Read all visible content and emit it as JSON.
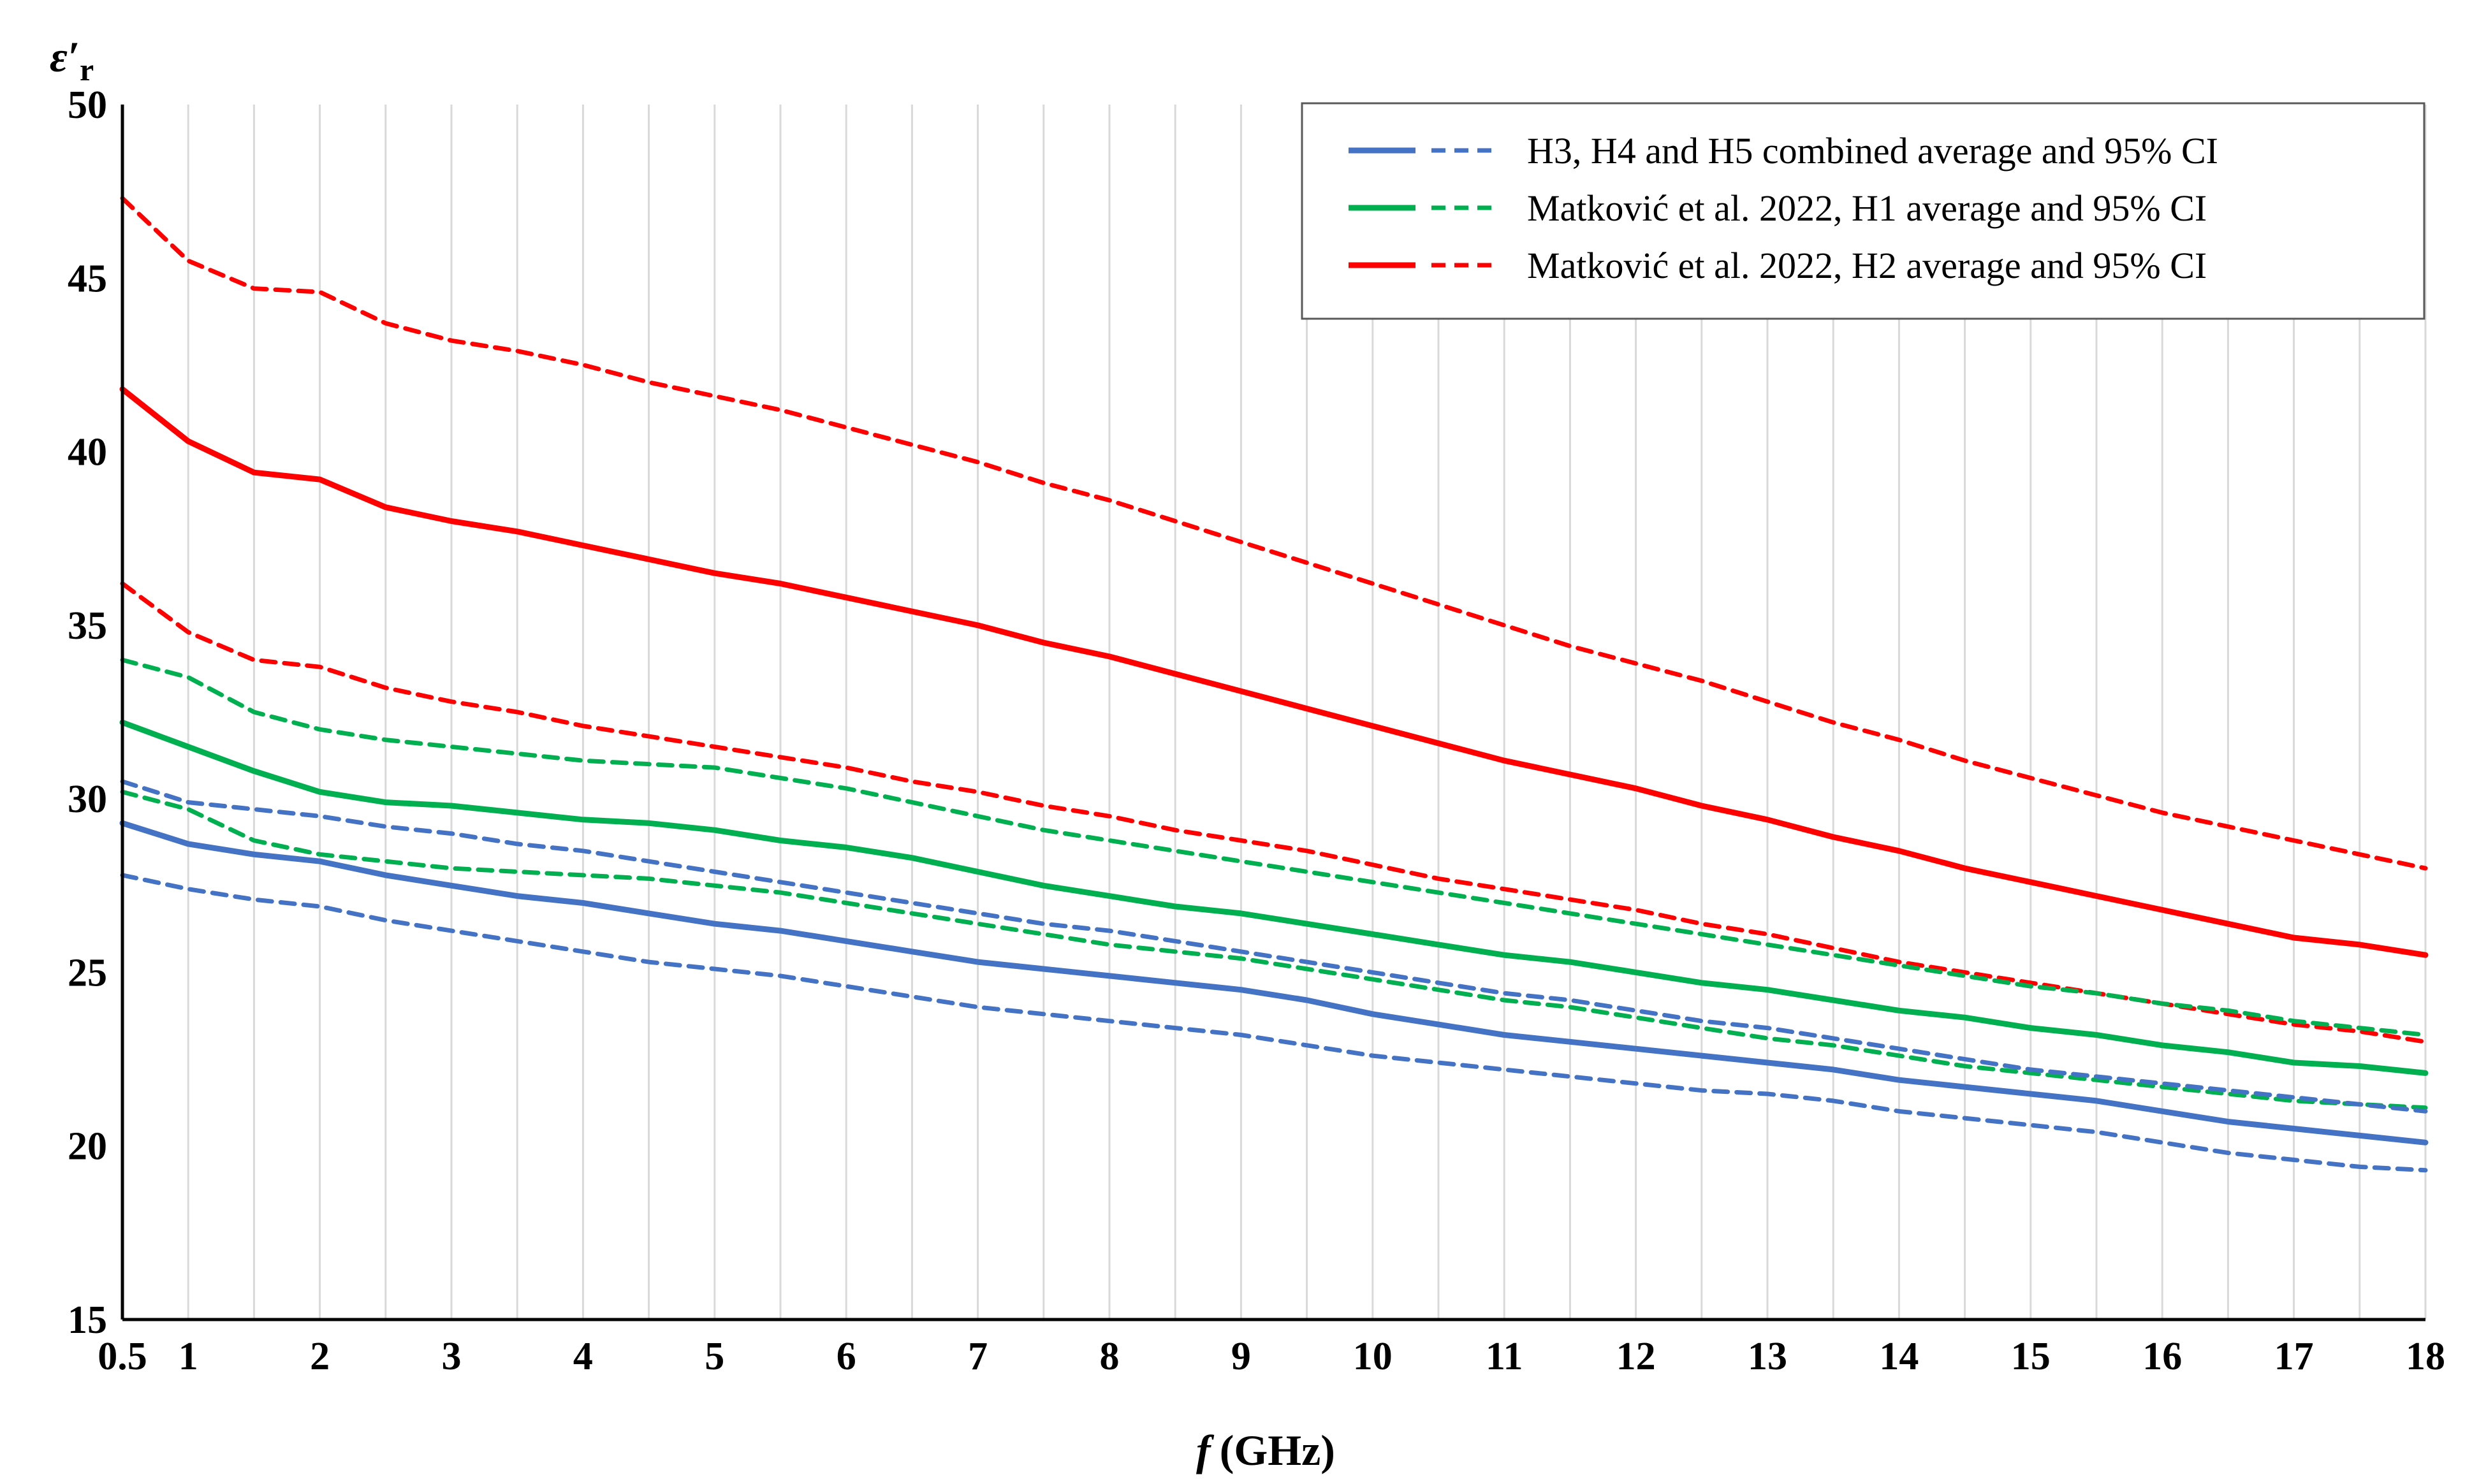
{
  "chart_data": {
    "type": "line",
    "title": "",
    "ylabel": "ε′",
    "ylabel_sub": "r",
    "xlabel_var": "f",
    "xlabel_unit": "(GHz)",
    "xlim": [
      0.5,
      18
    ],
    "ylim": [
      15,
      50
    ],
    "x_ticks": [
      0.5,
      1,
      2,
      3,
      4,
      5,
      6,
      7,
      8,
      9,
      10,
      11,
      12,
      13,
      14,
      15,
      16,
      17,
      18
    ],
    "x_tick_labels": [
      "0.5",
      "1",
      "2",
      "3",
      "4",
      "5",
      "6",
      "7",
      "8",
      "9",
      "10",
      "11",
      "12",
      "13",
      "14",
      "15",
      "16",
      "17",
      "18"
    ],
    "y_ticks": [
      15,
      20,
      25,
      30,
      35,
      40,
      45,
      50
    ],
    "y_tick_labels": [
      "15",
      "20",
      "25",
      "30",
      "35",
      "40",
      "45",
      "50"
    ],
    "grid": "vertical",
    "legend_position": "top-right",
    "legend": [
      {
        "label": "H3, H4 and H5 combined average and 95% CI",
        "color": "#4472c4"
      },
      {
        "label": "Matković et al. 2022, H1 average and 95% CI",
        "color": "#00b050"
      },
      {
        "label": "Matković et al. 2022, H2 average and 95% CI",
        "color": "#ff0000"
      }
    ],
    "x": [
      0.5,
      1,
      1.5,
      2,
      2.5,
      3,
      3.5,
      4,
      4.5,
      5,
      5.5,
      6,
      6.5,
      7,
      7.5,
      8,
      8.5,
      9,
      9.5,
      10,
      10.5,
      11,
      11.5,
      12,
      12.5,
      13,
      13.5,
      14,
      14.5,
      15,
      15.5,
      16,
      16.5,
      17,
      17.5,
      18
    ],
    "series": [
      {
        "name": "H2 upper 95% CI",
        "color": "#ff0000",
        "style": "dashed",
        "values": [
          47.3,
          45.5,
          44.7,
          44.6,
          43.7,
          43.2,
          42.9,
          42.5,
          42.0,
          41.6,
          41.2,
          40.7,
          40.2,
          39.7,
          39.1,
          38.6,
          38.0,
          37.4,
          36.8,
          36.2,
          35.6,
          35.0,
          34.4,
          33.9,
          33.4,
          32.8,
          32.2,
          31.7,
          31.1,
          30.6,
          30.1,
          29.6,
          29.2,
          28.8,
          28.4,
          28.0
        ]
      },
      {
        "name": "H2 average",
        "color": "#ff0000",
        "style": "solid",
        "values": [
          41.8,
          40.3,
          39.4,
          39.2,
          38.4,
          38.0,
          37.7,
          37.3,
          36.9,
          36.5,
          36.2,
          35.8,
          35.4,
          35.0,
          34.5,
          34.1,
          33.6,
          33.1,
          32.6,
          32.1,
          31.6,
          31.1,
          30.7,
          30.3,
          29.8,
          29.4,
          28.9,
          28.5,
          28.0,
          27.6,
          27.2,
          26.8,
          26.4,
          26.0,
          25.8,
          25.5
        ]
      },
      {
        "name": "H2 lower 95% CI",
        "color": "#ff0000",
        "style": "dashed",
        "values": [
          36.2,
          34.8,
          34.0,
          33.8,
          33.2,
          32.8,
          32.5,
          32.1,
          31.8,
          31.5,
          31.2,
          30.9,
          30.5,
          30.2,
          29.8,
          29.5,
          29.1,
          28.8,
          28.5,
          28.1,
          27.7,
          27.4,
          27.1,
          26.8,
          26.4,
          26.1,
          25.7,
          25.3,
          25.0,
          24.7,
          24.4,
          24.1,
          23.8,
          23.5,
          23.3,
          23.0
        ]
      },
      {
        "name": "H1 upper 95% CI",
        "color": "#00b050",
        "style": "dashed",
        "values": [
          34.0,
          33.5,
          32.5,
          32.0,
          31.7,
          31.5,
          31.3,
          31.1,
          31.0,
          30.9,
          30.6,
          30.3,
          29.9,
          29.5,
          29.1,
          28.8,
          28.5,
          28.2,
          27.9,
          27.6,
          27.3,
          27.0,
          26.7,
          26.4,
          26.1,
          25.8,
          25.5,
          25.2,
          24.9,
          24.6,
          24.4,
          24.1,
          23.9,
          23.6,
          23.4,
          23.2
        ]
      },
      {
        "name": "H1 average",
        "color": "#00b050",
        "style": "solid",
        "values": [
          32.2,
          31.5,
          30.8,
          30.2,
          29.9,
          29.8,
          29.6,
          29.4,
          29.3,
          29.1,
          28.8,
          28.6,
          28.3,
          27.9,
          27.5,
          27.2,
          26.9,
          26.7,
          26.4,
          26.1,
          25.8,
          25.5,
          25.3,
          25.0,
          24.7,
          24.5,
          24.2,
          23.9,
          23.7,
          23.4,
          23.2,
          22.9,
          22.7,
          22.4,
          22.3,
          22.1
        ]
      },
      {
        "name": "H1 lower 95% CI",
        "color": "#00b050",
        "style": "dashed",
        "values": [
          30.2,
          29.7,
          28.8,
          28.4,
          28.2,
          28.0,
          27.9,
          27.8,
          27.7,
          27.5,
          27.3,
          27.0,
          26.7,
          26.4,
          26.1,
          25.8,
          25.6,
          25.4,
          25.1,
          24.8,
          24.5,
          24.2,
          24.0,
          23.7,
          23.4,
          23.1,
          22.9,
          22.6,
          22.3,
          22.1,
          21.9,
          21.7,
          21.5,
          21.3,
          21.2,
          21.1
        ]
      },
      {
        "name": "H3-H5 upper 95% CI",
        "color": "#4472c4",
        "style": "dashed",
        "values": [
          30.5,
          29.9,
          29.7,
          29.5,
          29.2,
          29.0,
          28.7,
          28.5,
          28.2,
          27.9,
          27.6,
          27.3,
          27.0,
          26.7,
          26.4,
          26.2,
          25.9,
          25.6,
          25.3,
          25.0,
          24.7,
          24.4,
          24.2,
          23.9,
          23.6,
          23.4,
          23.1,
          22.8,
          22.5,
          22.2,
          22.0,
          21.8,
          21.6,
          21.4,
          21.2,
          21.0
        ]
      },
      {
        "name": "H3-H5 average",
        "color": "#4472c4",
        "style": "solid",
        "values": [
          29.3,
          28.7,
          28.4,
          28.2,
          27.8,
          27.5,
          27.2,
          27.0,
          26.7,
          26.4,
          26.2,
          25.9,
          25.6,
          25.3,
          25.1,
          24.9,
          24.7,
          24.5,
          24.2,
          23.8,
          23.5,
          23.2,
          23.0,
          22.8,
          22.6,
          22.4,
          22.2,
          21.9,
          21.7,
          21.5,
          21.3,
          21.0,
          20.7,
          20.5,
          20.3,
          20.1
        ]
      },
      {
        "name": "H3-H5 lower 95% CI",
        "color": "#4472c4",
        "style": "dashed",
        "values": [
          27.8,
          27.4,
          27.1,
          26.9,
          26.5,
          26.2,
          25.9,
          25.6,
          25.3,
          25.1,
          24.9,
          24.6,
          24.3,
          24.0,
          23.8,
          23.6,
          23.4,
          23.2,
          22.9,
          22.6,
          22.4,
          22.2,
          22.0,
          21.8,
          21.6,
          21.5,
          21.3,
          21.0,
          20.8,
          20.6,
          20.4,
          20.1,
          19.8,
          19.6,
          19.4,
          19.3
        ]
      }
    ]
  }
}
